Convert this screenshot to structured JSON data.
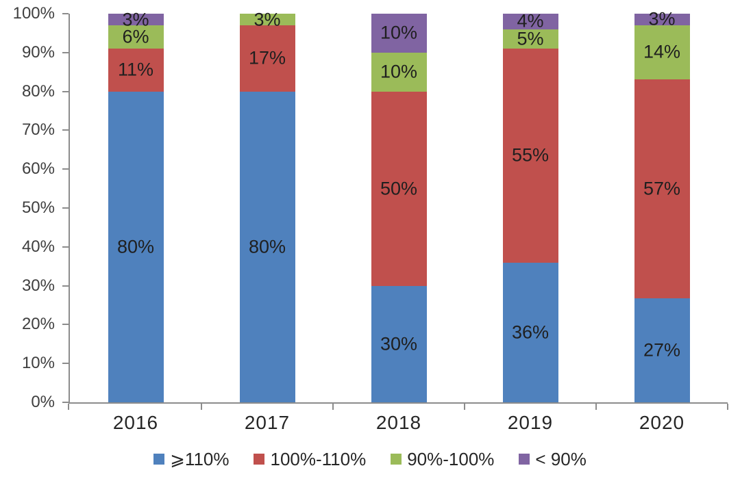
{
  "chart_data": {
    "type": "bar",
    "stacked": true,
    "units": "percent",
    "title": "",
    "categories": [
      "2016",
      "2017",
      "2018",
      "2019",
      "2020"
    ],
    "series": [
      {
        "name": "⩾110%",
        "color": "#4F81BD",
        "values": [
          80,
          80,
          30,
          36,
          27
        ]
      },
      {
        "name": "100%-110%",
        "color": "#C0504D",
        "values": [
          11,
          17,
          50,
          55,
          57
        ]
      },
      {
        "name": "90%-100%",
        "color": "#9BBB59",
        "values": [
          6,
          3,
          10,
          5,
          14
        ]
      },
      {
        "name": "< 90%",
        "color": "#8064A2",
        "values": [
          3,
          0,
          10,
          4,
          3
        ]
      }
    ],
    "data_labels": [
      [
        "80%",
        "11%",
        "6%",
        "3%"
      ],
      [
        "80%",
        "17%",
        "3%",
        ""
      ],
      [
        "30%",
        "50%",
        "10%",
        "10%"
      ],
      [
        "36%",
        "55%",
        "5%",
        "4%"
      ],
      [
        "27%",
        "57%",
        "14%",
        "3%"
      ]
    ],
    "y_axis": {
      "min": 0,
      "max": 100,
      "ticks": [
        "0%",
        "10%",
        "20%",
        "30%",
        "40%",
        "50%",
        "60%",
        "70%",
        "80%",
        "90%",
        "100%"
      ]
    },
    "x_axis": {
      "ticks": [
        "2016",
        "2017",
        "2018",
        "2019",
        "2020"
      ]
    },
    "legend": {
      "position": "bottom",
      "items": [
        "⩾110%",
        "100%-110%",
        "90%-100%",
        "< 90%"
      ]
    },
    "grid": false,
    "colors": {
      "axis": "#8C8C8C",
      "bar_label": "#1F1F1F",
      "y_tick_label": "#3F3F3F",
      "x_tick_label": "#262626",
      "legend_label": "#262626",
      "background": "#FFFFFF"
    }
  }
}
